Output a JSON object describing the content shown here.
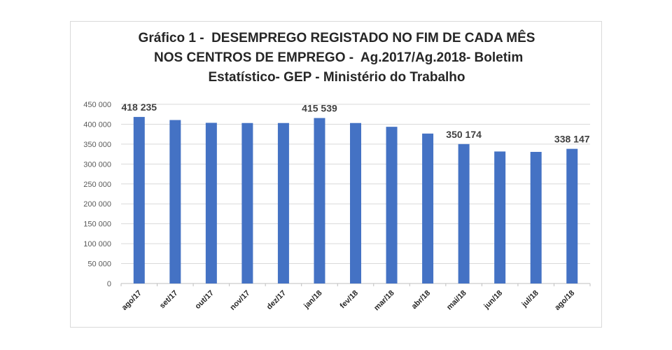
{
  "chart_data": {
    "type": "bar",
    "title_lines": [
      "Gráfico 1 -  DESEMPREGO REGISTADO NO FIM DE CADA MÊS",
      " NOS CENTROS DE EMPREGO -  Ag.2017/Ag.2018- Boletim",
      "Estatístico- GEP - Ministério do Trabalho"
    ],
    "categories": [
      "ago/17",
      "set/17",
      "out/17",
      "nov/17",
      "dez/17",
      "jan/18",
      "fev/18",
      "mar/18",
      "abr/18",
      "mai/18",
      "jun/18",
      "jul/18",
      "ago/18"
    ],
    "values": [
      418235,
      410500,
      403500,
      403000,
      403000,
      415539,
      403000,
      393500,
      376500,
      350174,
      331500,
      330500,
      338147
    ],
    "data_labels": {
      "0": "418 235",
      "5": "415 539",
      "9": "350 174",
      "12": "338 147"
    },
    "ylim": [
      0,
      450000
    ],
    "yticks": [
      0,
      50000,
      100000,
      150000,
      200000,
      250000,
      300000,
      350000,
      400000,
      450000
    ],
    "ytick_labels": [
      "0",
      "50 000",
      "100 000",
      "150 000",
      "200 000",
      "250 000",
      "300 000",
      "350 000",
      "400 000",
      "450 000"
    ],
    "grid": true,
    "bar_color": "#4472c4",
    "grid_color": "#d9d9d9"
  }
}
